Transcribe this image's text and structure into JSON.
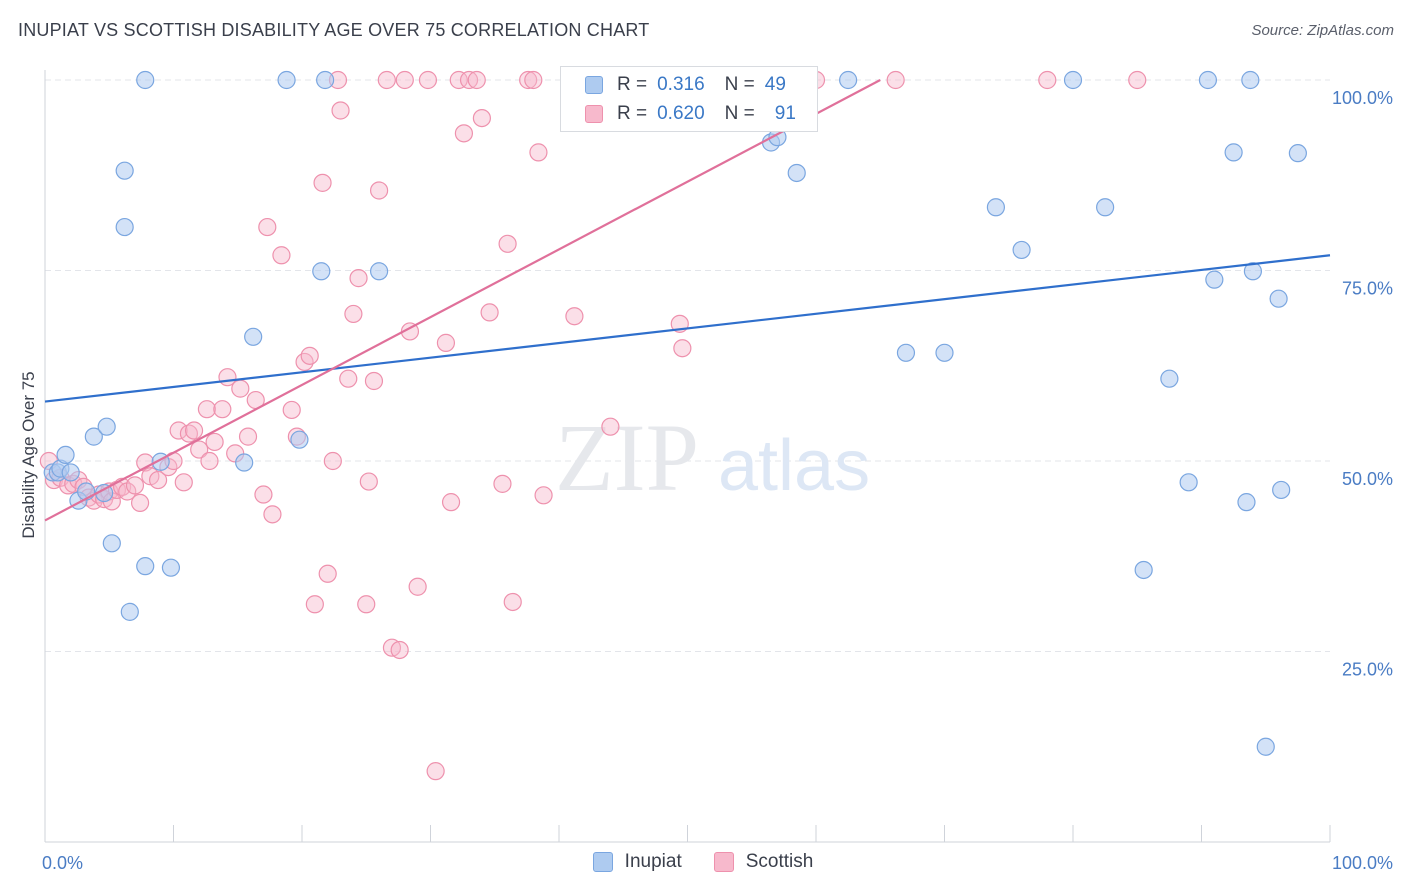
{
  "header": {
    "title": "INUPIAT VS SCOTTISH DISABILITY AGE OVER 75 CORRELATION CHART",
    "source": "Source: ZipAtlas.com"
  },
  "watermark": {
    "zip": "ZIP",
    "atlas": "atlas"
  },
  "legend_top": {
    "rows": [
      {
        "r_label": "R =",
        "r_value": "0.316",
        "n_label": "N =",
        "n_value": "49"
      },
      {
        "r_label": "R =",
        "r_value": "0.620",
        "n_label": "N =",
        "n_value": "91"
      }
    ]
  },
  "legend_bottom": {
    "items": [
      "Inupiat",
      "Scottish"
    ]
  },
  "colors": {
    "inupiat_fill": "#aecbf0",
    "inupiat_stroke": "#7aa6e0",
    "inupiat_line": "#2f6fcc",
    "scottish_fill": "#f7b9cc",
    "scottish_stroke": "#ee91ad",
    "scottish_line": "#e0709a",
    "tick_text": "#4a7cc4"
  },
  "chart_data": {
    "type": "scatter",
    "title": "INUPIAT VS SCOTTISH DISABILITY AGE OVER 75 CORRELATION CHART",
    "xlabel": "",
    "ylabel": "Disability Age Over 75",
    "xlim": [
      0,
      100
    ],
    "ylim": [
      0,
      104
    ],
    "x_tick_labels": [
      "0.0%",
      "100.0%"
    ],
    "y_ticks": [
      {
        "value": 25,
        "label": "25.0%"
      },
      {
        "value": 50,
        "label": "50.0%"
      },
      {
        "value": 75,
        "label": "75.0%"
      },
      {
        "value": 100,
        "label": "100.0%"
      }
    ],
    "grid": "horizontal dashed",
    "legend": "top-center and bottom-center",
    "series": [
      {
        "name": "Inupiat",
        "r": 0.316,
        "n": 49,
        "trendline": {
          "x": [
            0,
            100
          ],
          "y": [
            57.8,
            77.0
          ]
        },
        "points": [
          [
            0.6,
            48.5
          ],
          [
            1.0,
            48.5
          ],
          [
            1.2,
            49.0
          ],
          [
            1.6,
            50.8
          ],
          [
            2.0,
            48.5
          ],
          [
            2.6,
            44.8
          ],
          [
            3.2,
            46.0
          ],
          [
            3.8,
            53.2
          ],
          [
            4.6,
            45.8
          ],
          [
            4.8,
            54.5
          ],
          [
            5.2,
            39.2
          ],
          [
            6.2,
            80.7
          ],
          [
            6.2,
            88.1
          ],
          [
            6.6,
            30.2
          ],
          [
            7.8,
            36.2
          ],
          [
            7.8,
            100.0
          ],
          [
            9.0,
            49.9
          ],
          [
            9.8,
            36.0
          ],
          [
            15.5,
            49.8
          ],
          [
            16.2,
            66.3
          ],
          [
            18.8,
            100.0
          ],
          [
            19.8,
            52.8
          ],
          [
            21.5,
            74.9
          ],
          [
            21.8,
            100.0
          ],
          [
            26.0,
            74.9
          ],
          [
            52.8,
            95.5
          ],
          [
            56.5,
            91.8
          ],
          [
            57.0,
            92.5
          ],
          [
            58.5,
            87.8
          ],
          [
            62.5,
            100.0
          ],
          [
            67.0,
            64.2
          ],
          [
            70.0,
            64.2
          ],
          [
            74.0,
            83.3
          ],
          [
            76.0,
            77.7
          ],
          [
            80.0,
            100.0
          ],
          [
            82.5,
            83.3
          ],
          [
            85.5,
            35.7
          ],
          [
            87.5,
            60.8
          ],
          [
            89.0,
            47.2
          ],
          [
            90.5,
            100.0
          ],
          [
            91.0,
            73.8
          ],
          [
            92.5,
            90.5
          ],
          [
            93.5,
            44.6
          ],
          [
            93.8,
            100.0
          ],
          [
            94.0,
            74.9
          ],
          [
            95.0,
            12.5
          ],
          [
            96.0,
            71.3
          ],
          [
            96.2,
            46.2
          ],
          [
            97.5,
            90.4
          ]
        ]
      },
      {
        "name": "Scottish",
        "r": 0.62,
        "n": 91,
        "trendline": {
          "x": [
            0,
            65
          ],
          "y": [
            42.2,
            100.0
          ]
        },
        "points": [
          [
            0.3,
            50.0
          ],
          [
            0.7,
            47.5
          ],
          [
            1.2,
            47.8
          ],
          [
            1.8,
            46.8
          ],
          [
            2.2,
            47.0
          ],
          [
            2.6,
            47.5
          ],
          [
            3.0,
            46.6
          ],
          [
            3.4,
            45.2
          ],
          [
            3.8,
            44.8
          ],
          [
            4.2,
            45.6
          ],
          [
            4.6,
            45.0
          ],
          [
            5.0,
            46.0
          ],
          [
            5.2,
            44.7
          ],
          [
            5.6,
            46.2
          ],
          [
            6.0,
            46.6
          ],
          [
            6.4,
            46.0
          ],
          [
            7.0,
            46.8
          ],
          [
            7.4,
            44.5
          ],
          [
            7.8,
            49.8
          ],
          [
            8.2,
            48.0
          ],
          [
            8.8,
            47.5
          ],
          [
            9.6,
            49.2
          ],
          [
            10.0,
            50.0
          ],
          [
            10.4,
            54.0
          ],
          [
            10.8,
            47.2
          ],
          [
            11.2,
            53.6
          ],
          [
            11.6,
            54.0
          ],
          [
            12.0,
            51.5
          ],
          [
            12.6,
            56.8
          ],
          [
            12.8,
            50.0
          ],
          [
            13.2,
            52.5
          ],
          [
            13.8,
            56.8
          ],
          [
            14.2,
            61.0
          ],
          [
            14.8,
            51.0
          ],
          [
            15.2,
            59.5
          ],
          [
            15.8,
            53.2
          ],
          [
            16.4,
            58.0
          ],
          [
            17.0,
            45.6
          ],
          [
            17.3,
            80.7
          ],
          [
            17.7,
            43.0
          ],
          [
            18.4,
            77.0
          ],
          [
            19.2,
            56.7
          ],
          [
            19.6,
            53.2
          ],
          [
            20.2,
            63.0
          ],
          [
            20.6,
            63.8
          ],
          [
            21.0,
            31.2
          ],
          [
            21.6,
            86.5
          ],
          [
            22.0,
            35.2
          ],
          [
            22.4,
            50.0
          ],
          [
            22.8,
            100.0
          ],
          [
            23.0,
            96.0
          ],
          [
            23.6,
            60.8
          ],
          [
            24.0,
            69.3
          ],
          [
            24.4,
            74.0
          ],
          [
            25.0,
            31.2
          ],
          [
            25.2,
            47.3
          ],
          [
            25.6,
            60.5
          ],
          [
            26.0,
            85.5
          ],
          [
            26.6,
            100.0
          ],
          [
            27.0,
            25.5
          ],
          [
            27.6,
            25.2
          ],
          [
            28.0,
            100.0
          ],
          [
            28.4,
            67.0
          ],
          [
            29.0,
            33.5
          ],
          [
            29.8,
            100.0
          ],
          [
            30.4,
            9.3
          ],
          [
            31.2,
            65.5
          ],
          [
            31.6,
            44.6
          ],
          [
            32.2,
            100.0
          ],
          [
            32.6,
            93.0
          ],
          [
            33.0,
            100.0
          ],
          [
            33.6,
            100.0
          ],
          [
            34.0,
            95.0
          ],
          [
            34.6,
            69.5
          ],
          [
            35.6,
            47.0
          ],
          [
            36.0,
            78.5
          ],
          [
            36.4,
            31.5
          ],
          [
            37.6,
            100.0
          ],
          [
            38.0,
            100.0
          ],
          [
            38.4,
            90.5
          ],
          [
            38.8,
            45.5
          ],
          [
            41.2,
            69.0
          ],
          [
            42.0,
            100.0
          ],
          [
            44.0,
            54.5
          ],
          [
            49.4,
            68.0
          ],
          [
            49.6,
            64.8
          ],
          [
            59.2,
            100.0
          ],
          [
            60.0,
            100.0
          ],
          [
            66.2,
            100.0
          ],
          [
            78.0,
            100.0
          ],
          [
            85.0,
            100.0
          ]
        ]
      }
    ]
  }
}
